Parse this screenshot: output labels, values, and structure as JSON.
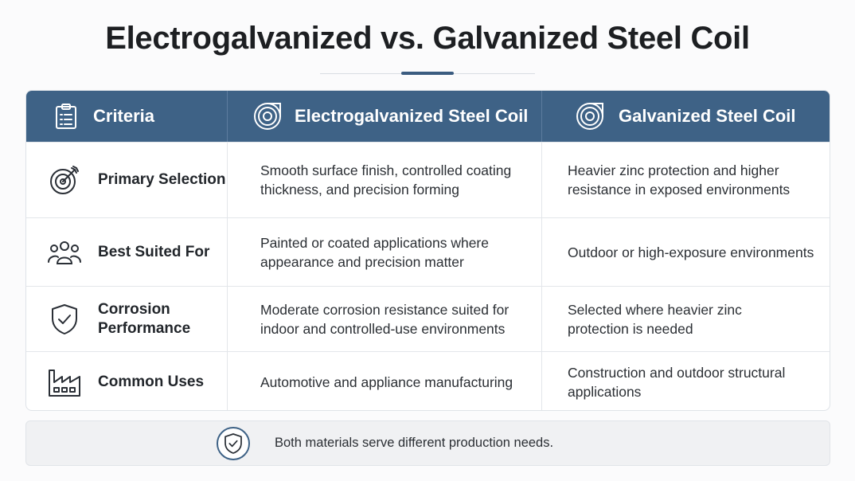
{
  "title": "Electrogalvanized vs. Galvanized Steel Coil",
  "table": {
    "headers": [
      {
        "label": "Criteria",
        "icon": "clipboard-list-icon"
      },
      {
        "label": "Electrogalvanized Steel Coil",
        "icon": "steel-coil-icon"
      },
      {
        "label": "Galvanized Steel Coil",
        "icon": "steel-coil-icon"
      }
    ],
    "rows": [
      {
        "criteria": "Primary Selection",
        "icon": "target-icon",
        "electrogalvanized": "Smooth surface finish, controlled coating thickness, and precision forming",
        "galvanized": "Heavier zinc protection and higher resistance in exposed environments"
      },
      {
        "criteria": "Best Suited For",
        "icon": "users-group-icon",
        "electrogalvanized": "Painted or coated applications where appearance and precision matter",
        "galvanized": "Outdoor or high-exposure environments"
      },
      {
        "criteria": "Corrosion Performance",
        "icon": "shield-check-icon",
        "electrogalvanized": "Moderate corrosion resistance suited for indoor and controlled-use environments",
        "galvanized": "Selected where heavier zinc protection is needed"
      },
      {
        "criteria": "Common Uses",
        "icon": "factory-icon",
        "electrogalvanized": "Automotive and appliance manufacturing",
        "galvanized": "Construction and outdoor structural applications"
      }
    ]
  },
  "footer": {
    "icon": "shield-check-icon",
    "text": "Both materials serve different production needs."
  },
  "colors": {
    "header_bg": "#3e6286",
    "accent": "#3b5c80",
    "icon_stroke": "#2a2f36"
  }
}
